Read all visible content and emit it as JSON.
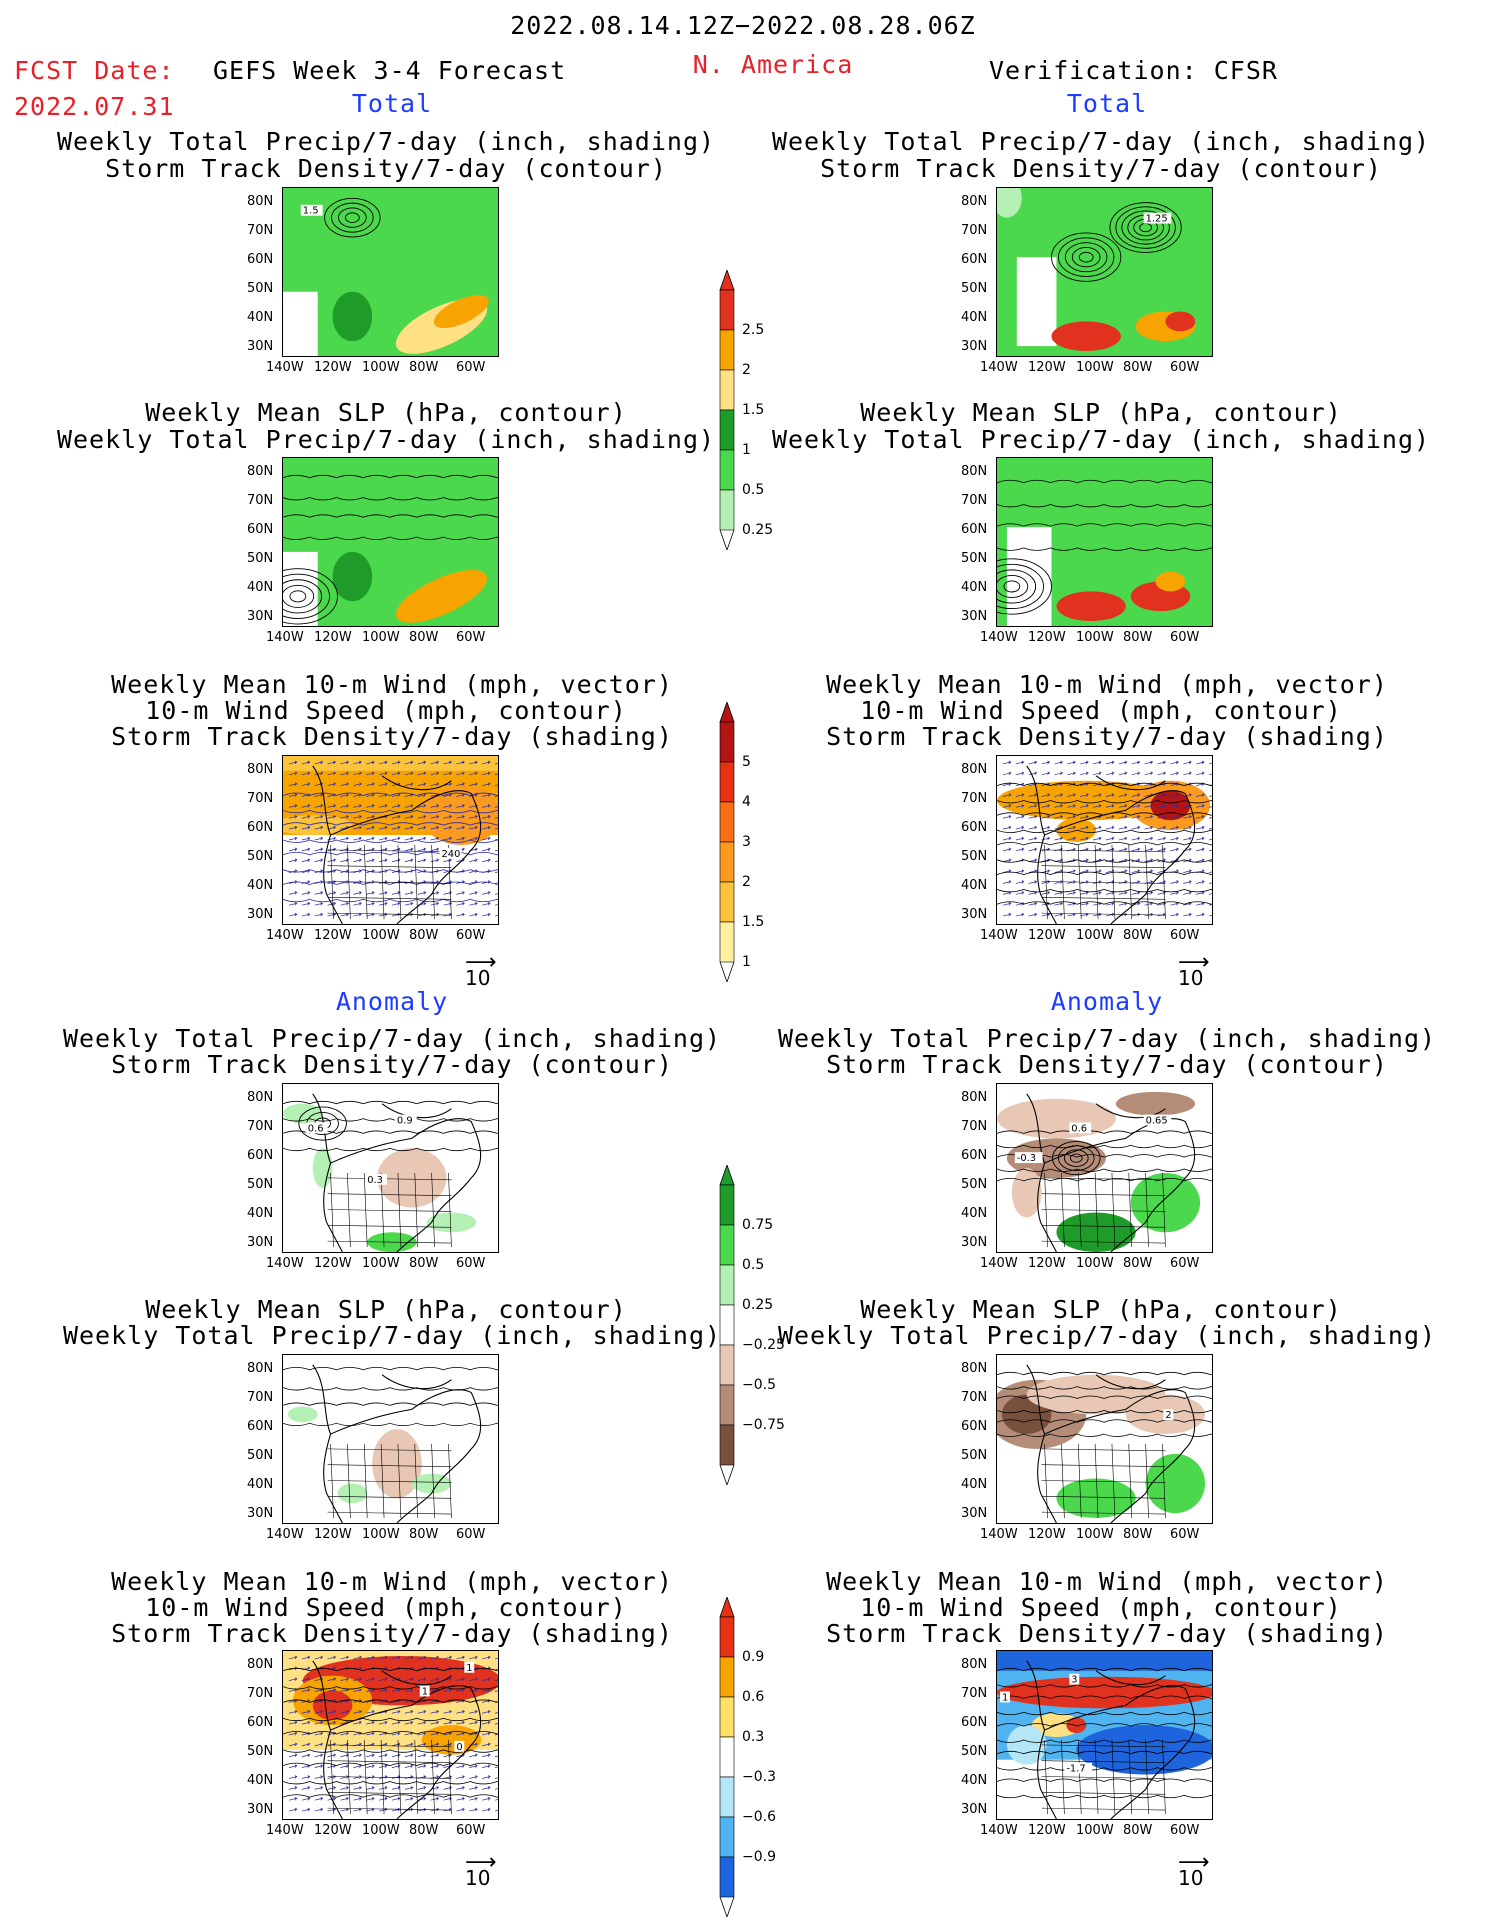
{
  "header": {
    "period": "2022.08.14.12Z−2022.08.28.06Z",
    "fcst_label": "FCST Date:",
    "fcst_date": "2022.07.31",
    "model": "GEFS Week 3-4 Forecast",
    "region": "N. America",
    "verification": "Verification: CFSR"
  },
  "sections": {
    "total": "Total",
    "anomaly": "Anomaly"
  },
  "titles": {
    "precip_track": [
      "Weekly Total Precip/7-day (inch, shading)",
      "Storm Track Density/7-day (contour)"
    ],
    "slp_precip": [
      "Weekly Mean SLP (hPa, contour)",
      "Weekly Total Precip/7-day (inch, shading)"
    ],
    "wind": [
      "Weekly Mean 10-m Wind (mph, vector)",
      "10-m Wind Speed (mph, contour)",
      "Storm Track Density/7-day (shading)"
    ]
  },
  "axes": {
    "lat": [
      "80N",
      "70N",
      "60N",
      "50N",
      "40N",
      "30N"
    ],
    "lon": [
      "140W",
      "120W",
      "100W",
      "80W",
      "60W"
    ]
  },
  "vector_ref": "10",
  "map_labels": {
    "fl1": "1.5",
    "vl1": "1.25",
    "fl3": "240",
    "fa1a": "0.9",
    "fa1b": "0.3",
    "fa1c": "0.6",
    "va1a": "0.6",
    "va1b": "0.65",
    "va1c": "-0.3",
    "va2": "2",
    "fa3a": "1",
    "fa3b": "1",
    "fa3c": "0",
    "va3a": "3",
    "va3b": "1",
    "va3c": "-1.7"
  },
  "colorbars": {
    "precip": {
      "labels": [
        "2.5",
        "2",
        "1.5",
        "1",
        "0.5",
        "0.25"
      ],
      "colors": [
        "#e0321e",
        "#f7a400",
        "#ffe082",
        "#1e9b28",
        "#4cd84c",
        "#b4f0b4"
      ]
    },
    "track": {
      "labels": [
        "5",
        "4",
        "3",
        "2",
        "1.5",
        "1"
      ],
      "colors": [
        "#b41414",
        "#e63214",
        "#fa6e14",
        "#fa9a1e",
        "#fcc43c",
        "#fff0a0"
      ]
    },
    "precip_anom": {
      "labels": [
        "0.75",
        "0.5",
        "0.25",
        "−0.25",
        "−0.5",
        "−0.75"
      ],
      "colors": [
        "#1e9b28",
        "#4cd84c",
        "#b4f0b4",
        "#ffffff",
        "#e8c8b4",
        "#b48c78",
        "#78503c"
      ]
    },
    "track_anom": {
      "labels": [
        "0.9",
        "0.6",
        "0.3",
        "−0.3",
        "−0.6",
        "−0.9"
      ],
      "colors": [
        "#e63214",
        "#f7a400",
        "#ffe066",
        "#ffffff",
        "#b4e6f7",
        "#50b4f0",
        "#1e64dc"
      ]
    }
  },
  "colors": {
    "red_text": "#e8202a",
    "blue_text": "#1c3cff"
  }
}
